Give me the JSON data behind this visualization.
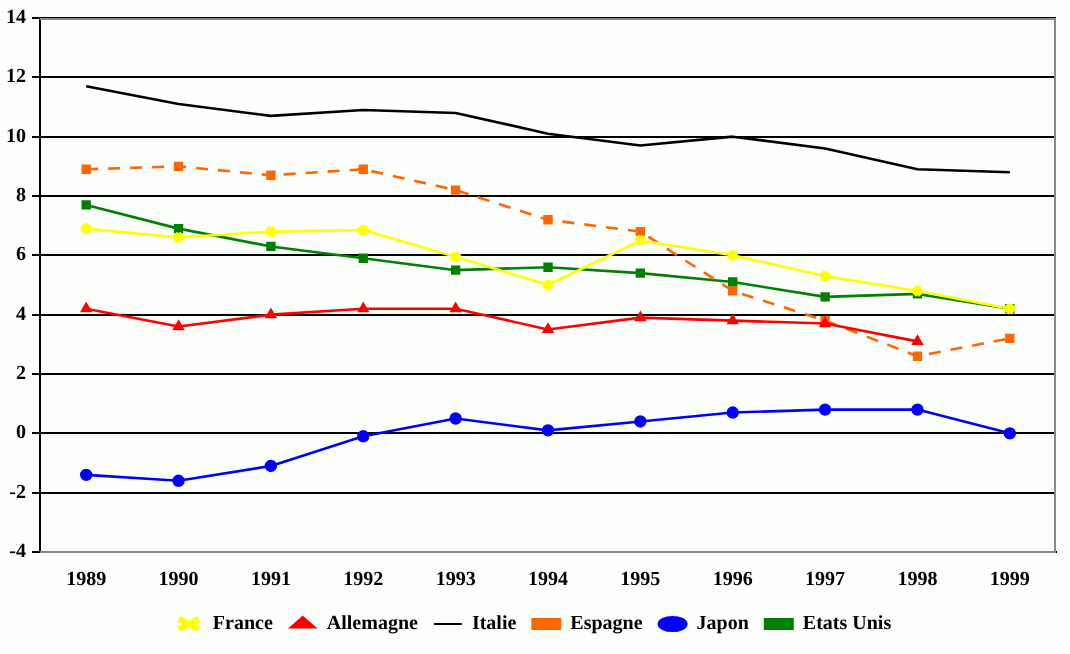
{
  "chart_data": {
    "type": "line",
    "categories": [
      "1989",
      "1990",
      "1991",
      "1992",
      "1993",
      "1994",
      "1995",
      "1996",
      "1997",
      "1998",
      "1999"
    ],
    "series": [
      {
        "name": "France",
        "color": "#ffff00",
        "marker": "cross",
        "values": [
          6.9,
          6.6,
          6.8,
          6.85,
          5.95,
          5.0,
          6.5,
          6.0,
          5.3,
          4.8,
          4.2
        ]
      },
      {
        "name": "Allemagne",
        "color": "#ff0000",
        "marker": "triangle",
        "values": [
          4.2,
          3.6,
          4.0,
          4.2,
          4.2,
          3.5,
          3.9,
          3.8,
          3.7,
          3.1,
          null
        ]
      },
      {
        "name": "Italie",
        "color": "#000000",
        "marker": "none",
        "values": [
          11.7,
          11.1,
          10.7,
          10.9,
          10.8,
          10.1,
          9.7,
          10.0,
          9.6,
          8.9,
          8.8
        ]
      },
      {
        "name": "Espagne",
        "color": "#ff6600",
        "marker": "square",
        "line_style": "dashed",
        "values": [
          8.9,
          9.0,
          8.7,
          8.9,
          8.2,
          7.2,
          6.8,
          4.8,
          3.8,
          2.6,
          3.2
        ]
      },
      {
        "name": "Japon",
        "color": "#0000ff",
        "marker": "circle",
        "values": [
          -1.4,
          -1.6,
          -1.1,
          -0.1,
          0.5,
          0.1,
          0.4,
          0.7,
          0.8,
          0.8,
          0.0
        ]
      },
      {
        "name": "Etats Unis",
        "color": "#008000",
        "marker": "square",
        "values": [
          7.7,
          6.9,
          6.3,
          5.9,
          5.5,
          5.6,
          5.4,
          5.1,
          4.6,
          4.7,
          4.2
        ]
      }
    ],
    "ylim": [
      -4,
      14
    ],
    "yticks": [
      -4,
      -2,
      0,
      2,
      4,
      6,
      8,
      10,
      12,
      14
    ],
    "grid": "y",
    "legend": "bottom"
  }
}
